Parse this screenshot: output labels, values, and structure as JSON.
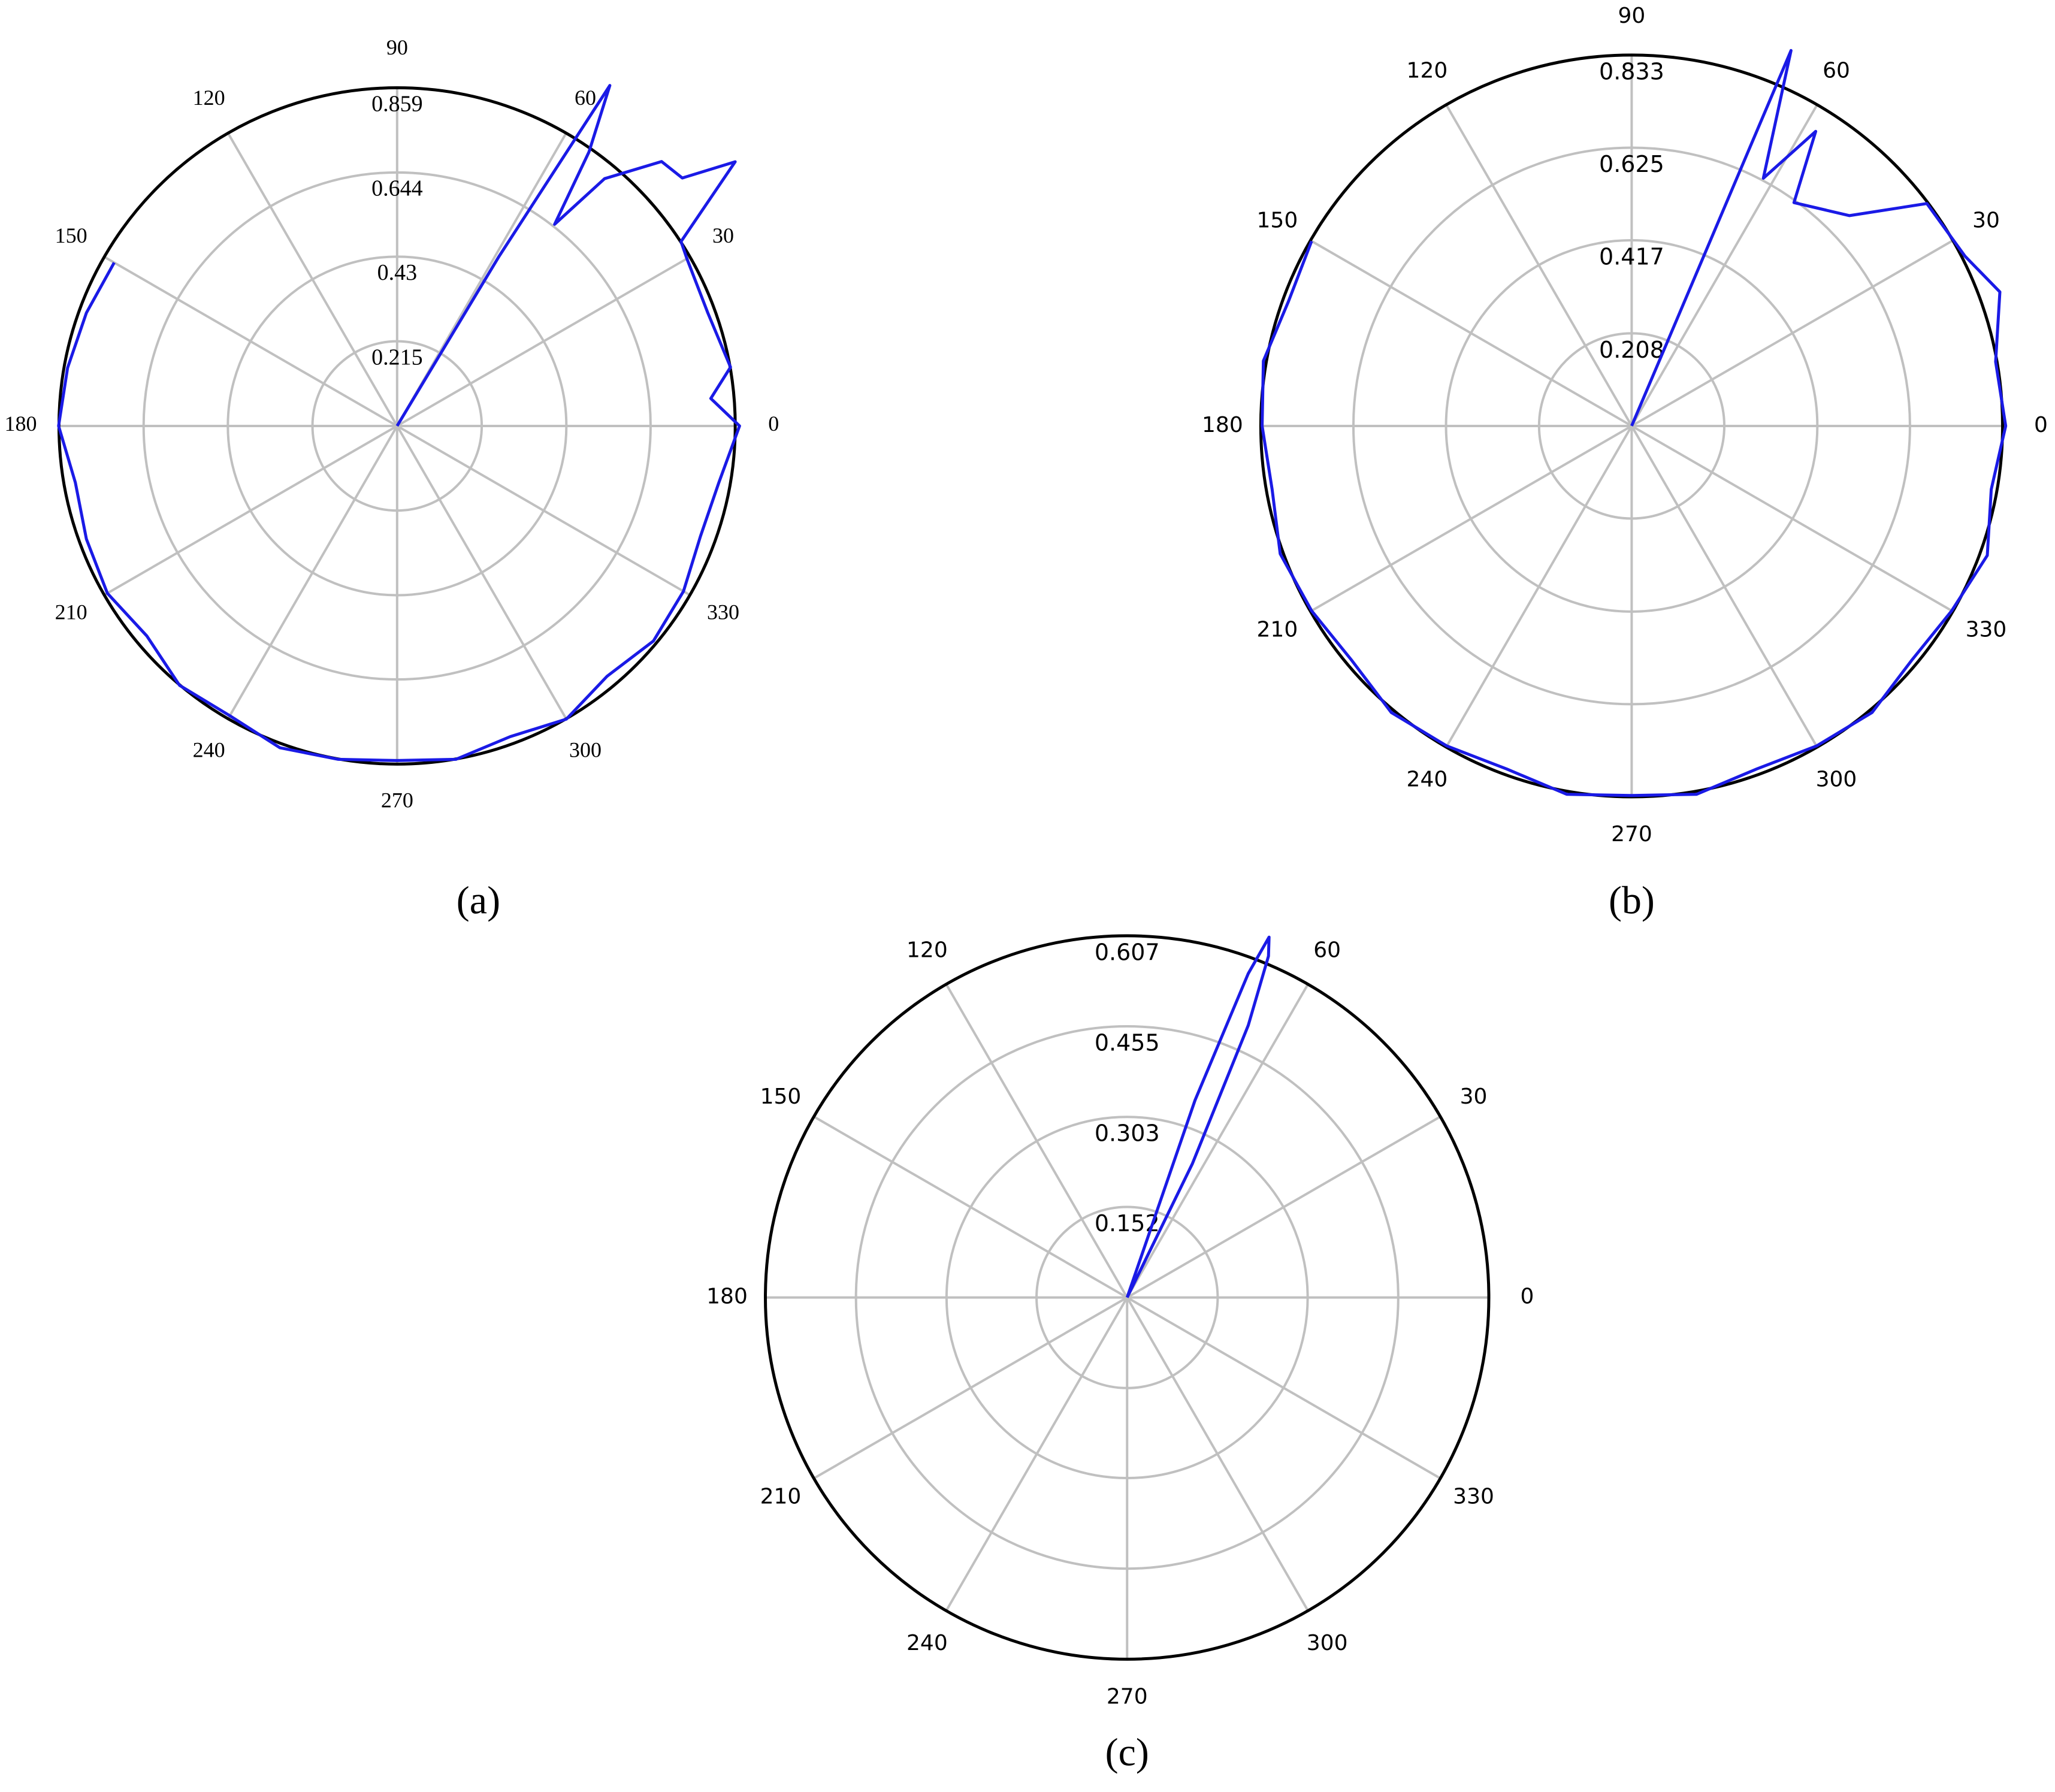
{
  "chart_data": [
    {
      "type": "polar",
      "label": "(a)",
      "font": "serif",
      "color": "#1a1ae6",
      "rlim": [
        0,
        0.859
      ],
      "rticks": [
        0.215,
        0.43,
        0.644,
        0.859
      ],
      "thetaticks": [
        0,
        30,
        60,
        90,
        120,
        150,
        180,
        210,
        240,
        270,
        300,
        330
      ],
      "theta": [
        150,
        160,
        170,
        180,
        190,
        200,
        210,
        220,
        230,
        240,
        250,
        260,
        270,
        280,
        290,
        300,
        310,
        320,
        330,
        340,
        350,
        0,
        5,
        10,
        20,
        30,
        33,
        38,
        41,
        45,
        50,
        52,
        55,
        58,
        59,
        60
      ],
      "r": [
        0.83,
        0.84,
        0.85,
        0.86,
        0.83,
        0.84,
        0.85,
        0.83,
        0.86,
        0.85,
        0.87,
        0.86,
        0.85,
        0.86,
        0.84,
        0.86,
        0.83,
        0.85,
        0.84,
        0.82,
        0.83,
        0.87,
        0.8,
        0.86,
        0.84,
        0.85,
        0.86,
        1.09,
        0.96,
        0.95,
        0.82,
        0.65,
        0.85,
        1.02,
        0.5,
        0
      ]
    },
    {
      "type": "polar",
      "label": "(b)",
      "font": "sans",
      "color": "#1a1ae6",
      "rlim": [
        0,
        0.833
      ],
      "rticks": [
        0.208,
        0.417,
        0.625,
        0.833
      ],
      "thetaticks": [
        0,
        30,
        60,
        90,
        120,
        150,
        180,
        210,
        240,
        270,
        300,
        330
      ],
      "theta": [
        150,
        160,
        170,
        180,
        190,
        200,
        210,
        220,
        230,
        240,
        250,
        260,
        270,
        280,
        290,
        300,
        310,
        320,
        330,
        340,
        350,
        0,
        10,
        20,
        27,
        37,
        44,
        54,
        58,
        62,
        67,
        68
      ],
      "r": [
        0.83,
        0.82,
        0.84,
        0.83,
        0.82,
        0.84,
        0.83,
        0.82,
        0.84,
        0.83,
        0.82,
        0.84,
        0.83,
        0.84,
        0.82,
        0.83,
        0.84,
        0.82,
        0.83,
        0.85,
        0.82,
        0.84,
        0.83,
        0.88,
        0.84,
        0.83,
        0.68,
        0.62,
        0.78,
        0.63,
        0.916,
        0
      ]
    },
    {
      "type": "polar",
      "label": "(c)",
      "font": "sans",
      "color": "#1a1ae6",
      "rlim": [
        0,
        0.607
      ],
      "rticks": [
        0.152,
        0.303,
        0.455,
        0.607
      ],
      "thetaticks": [
        0,
        30,
        60,
        120,
        150,
        180,
        210,
        240,
        270,
        300,
        330
      ],
      "theta": [
        60,
        64,
        66,
        67.5,
        68.5,
        69.5,
        71,
        74
      ],
      "r": [
        0,
        0.25,
        0.5,
        0.62,
        0.65,
        0.58,
        0.35,
        0
      ]
    }
  ]
}
